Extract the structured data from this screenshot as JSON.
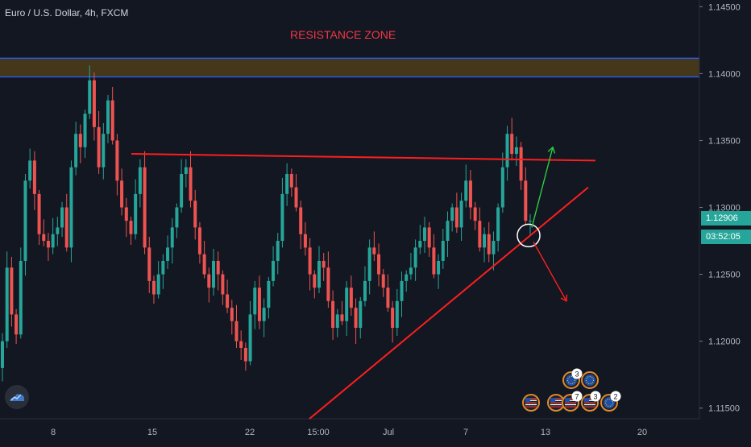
{
  "header": {
    "symbol_title": "Euro / U.S. Dollar, 4h, FXCM"
  },
  "annotations": {
    "resistance_label": "RESISTANCE ZONE"
  },
  "price_tags": {
    "last_price": "1.12906",
    "countdown": "03:52:05",
    "last_color": "#26a69a",
    "countdown_color": "#26a69a"
  },
  "colors": {
    "background": "#131722",
    "up": "#26a69a",
    "down": "#ef5350",
    "annotation_red": "#ff1e1e",
    "annotation_green": "#2ecc40",
    "zone_fill": "#4a3b1a",
    "zone_border": "#2962ff"
  },
  "events": {
    "badge_counts": [
      "3",
      "7",
      "3",
      "2"
    ]
  },
  "chart_data": {
    "type": "candlestick",
    "title": "Euro / U.S. Dollar, 4h, FXCM",
    "y_axis": {
      "position": "right",
      "ticks": [
        "1.14500",
        "1.14000",
        "1.13500",
        "1.13000",
        "1.12500",
        "1.12000",
        "1.11500"
      ],
      "ylim": [
        1.1142,
        1.1455
      ]
    },
    "x_axis": {
      "ticks": [
        "8",
        "15",
        "22",
        "15:00",
        "Jul",
        "7",
        "13",
        "20"
      ]
    },
    "resistance_zone": {
      "from": 1.13975,
      "to": 1.14115
    },
    "trend_lines": [
      {
        "name": "horizontal-resistance",
        "x_from": "Jun 13",
        "y_from": 1.134,
        "x_to": "Jul 14",
        "y_to": 1.1335
      },
      {
        "name": "ascending-support",
        "x_from": "Jun 26",
        "y_from": 1.1142,
        "x_to": "Jul 14",
        "y_to": 1.1315
      }
    ],
    "arrows": [
      {
        "direction": "up",
        "target": 1.1345
      },
      {
        "direction": "down",
        "target": 1.123
      }
    ],
    "highlight_circle_price": 1.1279,
    "series": [
      {
        "close": [
          1.12,
          1.1255,
          1.122,
          1.1205,
          1.126,
          1.132,
          1.1335,
          1.131,
          1.128,
          1.1275,
          1.127,
          1.128,
          1.1285,
          1.13,
          1.127,
          1.133,
          1.1355,
          1.1345,
          1.137,
          1.1395,
          1.136,
          1.133,
          1.1355,
          1.138,
          1.135,
          1.132,
          1.13,
          1.129,
          1.128,
          1.131,
          1.133,
          1.127,
          1.1245,
          1.1235,
          1.125,
          1.126,
          1.127,
          1.1285,
          1.13,
          1.1325,
          1.133,
          1.1305,
          1.1285,
          1.1265,
          1.125,
          1.124,
          1.126,
          1.125,
          1.1235,
          1.1225,
          1.1215,
          1.12,
          1.1195,
          1.1185,
          1.122,
          1.124,
          1.1215,
          1.1225,
          1.1245,
          1.126,
          1.1275,
          1.131,
          1.1325,
          1.1315,
          1.13,
          1.128,
          1.127,
          1.125,
          1.124,
          1.126,
          1.1255,
          1.123,
          1.121,
          1.122,
          1.1215,
          1.124,
          1.1225,
          1.121,
          1.123,
          1.1245,
          1.127,
          1.1265,
          1.125,
          1.124,
          1.1225,
          1.121,
          1.123,
          1.1245,
          1.125,
          1.1255,
          1.127,
          1.1275,
          1.1285,
          1.127,
          1.125,
          1.126,
          1.1275,
          1.129,
          1.13,
          1.1285,
          1.1305,
          1.132,
          1.13,
          1.129,
          1.127,
          1.128,
          1.1265,
          1.1275,
          1.13,
          1.133,
          1.1355,
          1.134,
          1.1345,
          1.132,
          1.129,
          1.129
        ]
      }
    ]
  }
}
